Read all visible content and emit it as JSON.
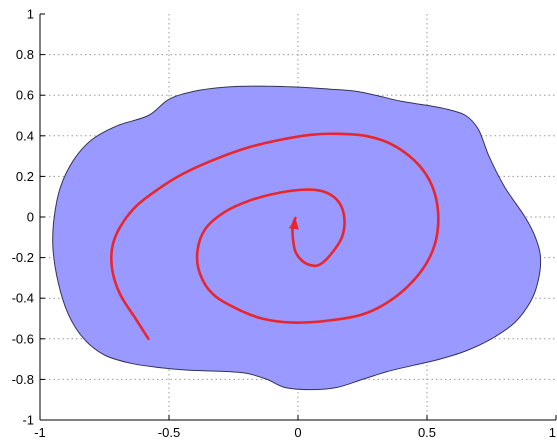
{
  "chart_data": {
    "type": "line",
    "title": "",
    "xlabel": "",
    "ylabel": "",
    "xlim": [
      -1,
      1
    ],
    "ylim": [
      -1,
      1
    ],
    "grid": true,
    "x_ticks": [
      {
        "value": -1,
        "label": "-1"
      },
      {
        "value": -0.5,
        "label": "-0.5"
      },
      {
        "value": 0,
        "label": "0"
      },
      {
        "value": 0.5,
        "label": "0.5"
      },
      {
        "value": 1,
        "label": "1"
      }
    ],
    "y_ticks": [
      {
        "value": -1,
        "label": "-1"
      },
      {
        "value": -0.8,
        "label": "-0.8"
      },
      {
        "value": -0.6,
        "label": "-0.6"
      },
      {
        "value": -0.4,
        "label": "-0.4"
      },
      {
        "value": -0.2,
        "label": "-0.2"
      },
      {
        "value": 0,
        "label": "0"
      },
      {
        "value": 0.2,
        "label": "0.2"
      },
      {
        "value": 0.4,
        "label": "0.4"
      },
      {
        "value": 0.6,
        "label": "0.6"
      },
      {
        "value": 0.8,
        "label": "0.8"
      },
      {
        "value": 1,
        "label": "1"
      }
    ],
    "region": {
      "fill_color": "#9999ff",
      "edge_color": "#333355",
      "points": [
        [
          -0.58,
          0.5
        ],
        [
          -0.5,
          0.58
        ],
        [
          -0.4,
          0.62
        ],
        [
          -0.28,
          0.64
        ],
        [
          -0.15,
          0.645
        ],
        [
          0.0,
          0.64
        ],
        [
          0.12,
          0.63
        ],
        [
          0.22,
          0.62
        ],
        [
          0.3,
          0.6
        ],
        [
          0.4,
          0.57
        ],
        [
          0.5,
          0.55
        ],
        [
          0.58,
          0.53
        ],
        [
          0.65,
          0.5
        ],
        [
          0.7,
          0.43
        ],
        [
          0.74,
          0.3
        ],
        [
          0.8,
          0.15
        ],
        [
          0.88,
          0.0
        ],
        [
          0.92,
          -0.1
        ],
        [
          0.94,
          -0.2
        ],
        [
          0.93,
          -0.32
        ],
        [
          0.9,
          -0.42
        ],
        [
          0.84,
          -0.52
        ],
        [
          0.75,
          -0.6
        ],
        [
          0.65,
          -0.66
        ],
        [
          0.55,
          -0.7
        ],
        [
          0.45,
          -0.73
        ],
        [
          0.35,
          -0.76
        ],
        [
          0.25,
          -0.8
        ],
        [
          0.15,
          -0.84
        ],
        [
          0.05,
          -0.85
        ],
        [
          -0.05,
          -0.84
        ],
        [
          -0.12,
          -0.8
        ],
        [
          -0.2,
          -0.77
        ],
        [
          -0.3,
          -0.76
        ],
        [
          -0.42,
          -0.755
        ],
        [
          -0.55,
          -0.74
        ],
        [
          -0.65,
          -0.72
        ],
        [
          -0.75,
          -0.68
        ],
        [
          -0.83,
          -0.6
        ],
        [
          -0.89,
          -0.48
        ],
        [
          -0.93,
          -0.32
        ],
        [
          -0.95,
          -0.15
        ],
        [
          -0.945,
          0.0
        ],
        [
          -0.92,
          0.15
        ],
        [
          -0.87,
          0.28
        ],
        [
          -0.8,
          0.38
        ],
        [
          -0.7,
          0.45
        ]
      ]
    },
    "series": [
      {
        "color": "#e8262b",
        "points": [
          [
            -0.58,
            -0.6
          ],
          [
            -0.63,
            -0.5
          ],
          [
            -0.69,
            -0.38
          ],
          [
            -0.72,
            -0.26
          ],
          [
            -0.72,
            -0.15
          ],
          [
            -0.69,
            -0.05
          ],
          [
            -0.63,
            0.05
          ],
          [
            -0.55,
            0.13
          ],
          [
            -0.45,
            0.21
          ],
          [
            -0.33,
            0.28
          ],
          [
            -0.2,
            0.34
          ],
          [
            -0.07,
            0.38
          ],
          [
            0.05,
            0.405
          ],
          [
            0.15,
            0.41
          ],
          [
            0.26,
            0.4
          ],
          [
            0.36,
            0.36
          ],
          [
            0.45,
            0.28
          ],
          [
            0.51,
            0.18
          ],
          [
            0.54,
            0.06
          ],
          [
            0.54,
            -0.08
          ],
          [
            0.51,
            -0.2
          ],
          [
            0.45,
            -0.31
          ],
          [
            0.36,
            -0.41
          ],
          [
            0.25,
            -0.48
          ],
          [
            0.12,
            -0.51
          ],
          [
            -0.02,
            -0.52
          ],
          [
            -0.14,
            -0.5
          ],
          [
            -0.24,
            -0.45
          ],
          [
            -0.33,
            -0.38
          ],
          [
            -0.38,
            -0.28
          ],
          [
            -0.39,
            -0.17
          ],
          [
            -0.36,
            -0.06
          ],
          [
            -0.29,
            0.02
          ],
          [
            -0.19,
            0.08
          ],
          [
            -0.07,
            0.12
          ],
          [
            0.04,
            0.135
          ],
          [
            0.11,
            0.12
          ],
          [
            0.16,
            0.07
          ],
          [
            0.18,
            -0.01
          ],
          [
            0.17,
            -0.1
          ],
          [
            0.13,
            -0.18
          ],
          [
            0.09,
            -0.23
          ],
          [
            0.06,
            -0.24
          ],
          [
            0.02,
            -0.22
          ],
          [
            -0.01,
            -0.17
          ],
          [
            -0.02,
            -0.1
          ],
          [
            -0.02,
            -0.04
          ],
          [
            -0.01,
            -0.005
          ]
        ]
      }
    ]
  }
}
